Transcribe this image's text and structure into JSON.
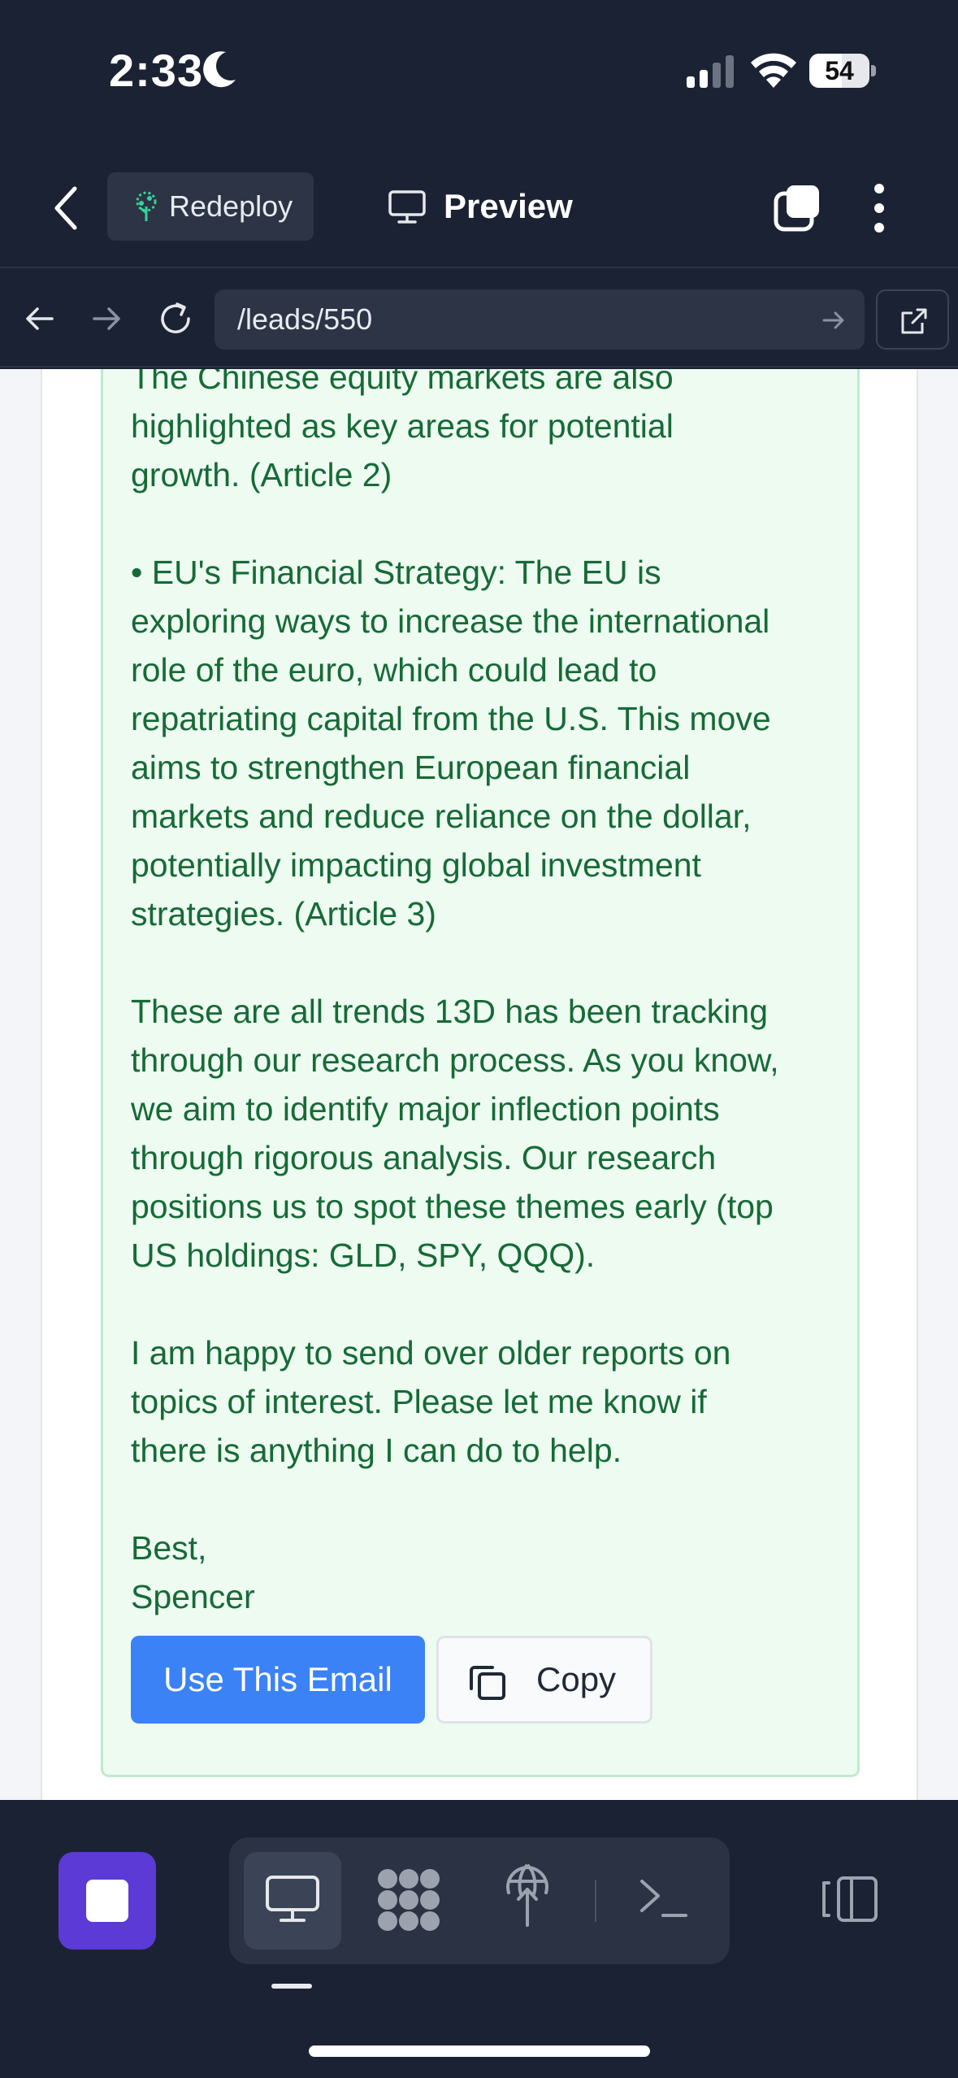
{
  "status_bar": {
    "time": "2:33",
    "battery_level": "54",
    "battery_fraction": 0.54
  },
  "header": {
    "redeploy_label": "Redeploy",
    "preview_label": "Preview"
  },
  "browser": {
    "url": "/leads/550"
  },
  "email": {
    "body": "The Chinese equity markets are also\nhighlighted as key areas for potential\ngrowth. (Article 2)\n\n• EU's Financial Strategy: The EU is\nexploring ways to increase the international\nrole of the euro, which could lead to\nrepatriating capital from the U.S. This move\naims to strengthen European financial\nmarkets and reduce reliance on the dollar,\npotentially impacting global investment\nstrategies. (Article 3)\n\nThese are all trends 13D has been tracking\nthrough our research process. As you know,\nwe aim to identify major inflection points\nthrough rigorous analysis. Our research\npositions us to spot these themes early (top\nUS holdings: GLD, SPY, QQQ).\n\nI am happy to send over older reports on\ntopics of interest. Please let me know if\nthere is anything I can do to help.\n\nBest,\nSpencer",
    "use_email_label": "Use This Email",
    "copy_label": "Copy"
  },
  "colors": {
    "accent_blue": "#3b82f6",
    "stop_purple": "#5b3ad6",
    "email_text_green": "#166a36",
    "email_bg_green": "#edfbf1",
    "chrome_dark": "#1b2233"
  },
  "icons": {
    "status": [
      "moon-icon",
      "cellular-signal-icon",
      "wifi-icon",
      "battery-icon"
    ],
    "header": [
      "chevron-left-icon",
      "tree-icon",
      "monitor-icon",
      "tabs-icon",
      "more-vertical-icon"
    ],
    "browser": [
      "arrow-left-icon",
      "arrow-right-icon",
      "reload-icon",
      "arrow-right-icon",
      "external-link-icon"
    ],
    "toolbar": [
      "stop-icon",
      "desktop-icon",
      "apps-grid-icon",
      "globe-deploy-icon",
      "terminal-icon",
      "panel-layout-icon"
    ]
  }
}
